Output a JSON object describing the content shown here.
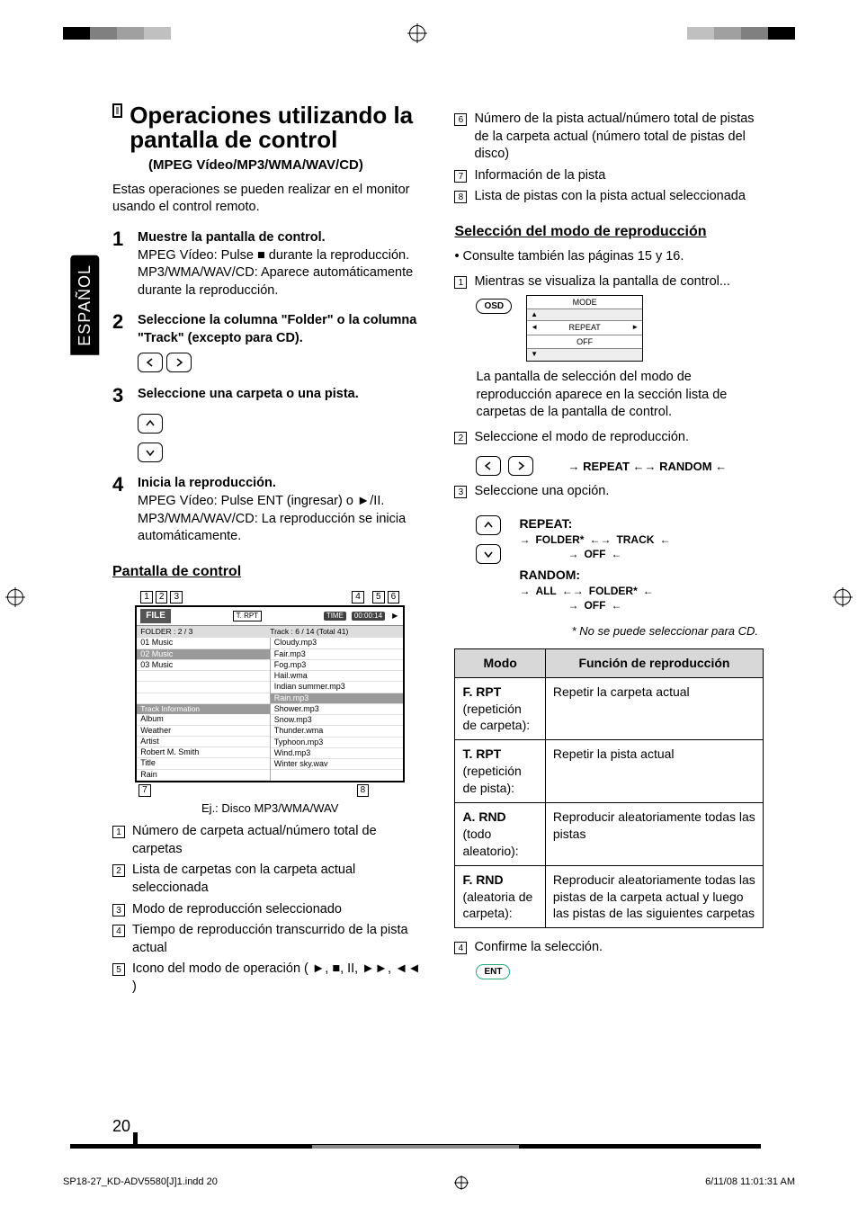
{
  "language_tab": "ESPAÑOL",
  "page_number": "20",
  "footer": {
    "file": "SP18-27_KD-ADV5580[J]1.indd   20",
    "date": "6/11/08   11:01:31 AM"
  },
  "crop_colors": [
    "#000000",
    "#d63a3a",
    "#4a8f3a",
    "#3a5fd6",
    "#808080",
    "#a0a0a0",
    "#c0c0c0"
  ],
  "title": "Operaciones utilizando la pantalla de control",
  "subtitle": "(MPEG Vídeo/MP3/WMA/WAV/CD)",
  "intro": "Estas operaciones se pueden realizar en el monitor usando el control remoto.",
  "steps": [
    {
      "n": "1",
      "title": "Muestre la pantalla de control.",
      "body": "MPEG Vídeo: Pulse ■ durante la reproducción. MP3/WMA/WAV/CD: Aparece automáticamente durante la reproducción."
    },
    {
      "n": "2",
      "title": "Seleccione la columna \"Folder\" o la columna \"Track\" (excepto para CD).",
      "body": "",
      "buttons": "lr"
    },
    {
      "n": "3",
      "title": "Seleccione una carpeta o una pista.",
      "body": "",
      "buttons": "ud"
    },
    {
      "n": "4",
      "title": "Inicia la reproducción.",
      "body": "MPEG Vídeo: Pulse ENT (ingresar) o ►/II. MP3/WMA/WAV/CD: La reproducción se inicia automáticamente."
    }
  ],
  "control_screen_heading": "Pantalla de control",
  "diagram": {
    "callouts_top": [
      "1",
      "2",
      "3",
      "4",
      "5",
      "6"
    ],
    "callouts_bottom": [
      "7",
      "8"
    ],
    "file_label": "FILE",
    "trpt": "T. RPT",
    "time_label": "TIME",
    "time_value": "00:00:14",
    "folder_row": "FOLDER : 2 /   3",
    "track_row": "Track : 6 / 14 (Total   41)",
    "folders": [
      "01 Music",
      "02 Music",
      "03 Music"
    ],
    "tracks": [
      "Cloudy.mp3",
      "Fair.mp3",
      "Fog.mp3",
      "Hail.wma",
      "Indian summer.mp3",
      "Rain.mp3",
      "Shower.mp3",
      "Snow.mp3",
      "Thunder.wma",
      "Typhoon.mp3",
      "Wind.mp3",
      "Winter sky.wav"
    ],
    "selected_folder_idx": 1,
    "selected_track_idx": 5,
    "track_info_header": "Track Information",
    "track_info": [
      {
        "k": "Album",
        "v": ""
      },
      {
        "k": "Weather",
        "v": ""
      },
      {
        "k": "Artist",
        "v": ""
      },
      {
        "k": "Robert M. Smith",
        "v": ""
      },
      {
        "k": "Title",
        "v": ""
      },
      {
        "k": "Rain",
        "v": ""
      }
    ],
    "caption": "Ej.: Disco MP3/WMA/WAV"
  },
  "legend": [
    "Número de carpeta actual/número total de carpetas",
    "Lista de carpetas con la carpeta actual seleccionada",
    "Modo de reproducción seleccionado",
    "Tiempo de reproducción transcurrido de la pista actual",
    "Icono del modo de operación ( ►, ■, II, ►►, ◄◄ )"
  ],
  "legend_right": [
    "Número de la pista actual/número total de pistas de la carpeta actual (número total de pistas del disco)",
    "Información de la pista",
    "Lista de pistas con la pista actual seleccionada"
  ],
  "playback_mode_heading": "Selección del modo de reproducción",
  "bullet1": "Consulte también las páginas 15 y 16.",
  "pm_steps": [
    "Mientras se visualiza la pantalla de control...",
    "La pantalla de selección del modo de reproducción aparece en la sección lista de carpetas de la pantalla de control.",
    "Seleccione el modo de reproducción.",
    "Seleccione una opción.",
    "Confirme la selección."
  ],
  "osd_label": "OSD",
  "mode_box": {
    "top": "MODE",
    "mid": "REPEAT",
    "bot": "OFF"
  },
  "cycle": {
    "repeat_title": "REPEAT:",
    "repeat": [
      "FOLDER*",
      "TRACK"
    ],
    "off": "OFF",
    "random_title": "RANDOM:",
    "random": [
      "ALL",
      "FOLDER*"
    ],
    "lr_labels": [
      "REPEAT",
      "RANDOM"
    ]
  },
  "footnote": "*  No se puede seleccionar para CD.",
  "table": {
    "headers": [
      "Modo",
      "Función de reproducción"
    ],
    "rows": [
      {
        "mode": "F. RPT",
        "sub": "(repetición de carpeta):",
        "func": "Repetir la carpeta actual"
      },
      {
        "mode": "T. RPT",
        "sub": "(repetición de pista):",
        "func": "Repetir la pista actual"
      },
      {
        "mode": "A. RND",
        "sub": "(todo aleatorio):",
        "func": "Reproducir aleatoriamente todas las pistas"
      },
      {
        "mode": "F. RND",
        "sub": "(aleatoria de carpeta):",
        "func": "Reproducir aleatoriamente todas las pistas de la carpeta actual y luego las pistas de las siguientes carpetas"
      }
    ]
  },
  "ent_label": "ENT"
}
